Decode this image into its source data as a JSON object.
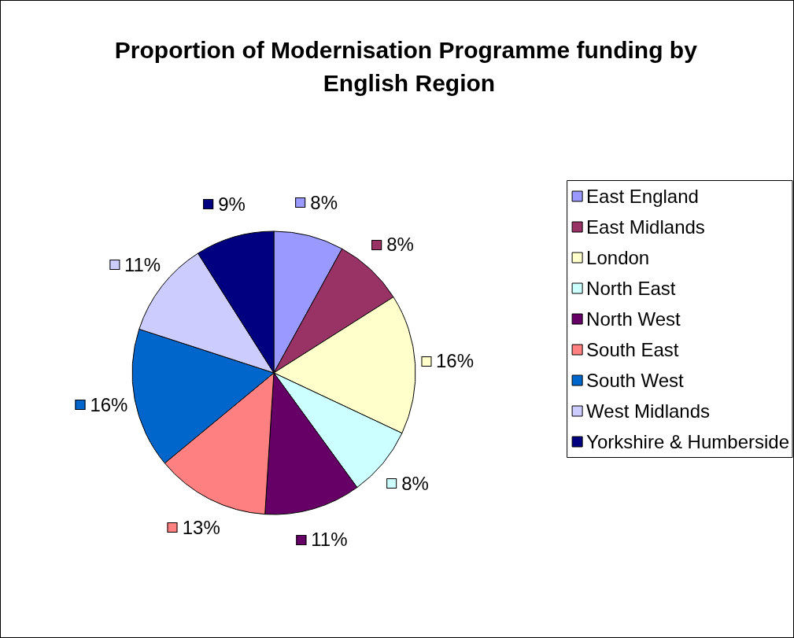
{
  "chart_data": {
    "type": "pie",
    "title": "Proportion of Modernisation Programme funding by English Region",
    "categories": [
      "East England",
      "East Midlands",
      "London",
      "North East",
      "North West",
      "South East",
      "South West",
      "West Midlands",
      "Yorkshire & Humberside"
    ],
    "values": [
      8,
      8,
      16,
      8,
      11,
      13,
      16,
      11,
      9
    ],
    "value_labels": [
      "8%",
      "8%",
      "16%",
      "8%",
      "11%",
      "13%",
      "16%",
      "11%",
      "9%"
    ],
    "colors": [
      "#9999ff",
      "#993366",
      "#ffffcc",
      "#ccffff",
      "#660066",
      "#ff8080",
      "#0066cc",
      "#ccccff",
      "#000080"
    ],
    "legend": "right"
  }
}
